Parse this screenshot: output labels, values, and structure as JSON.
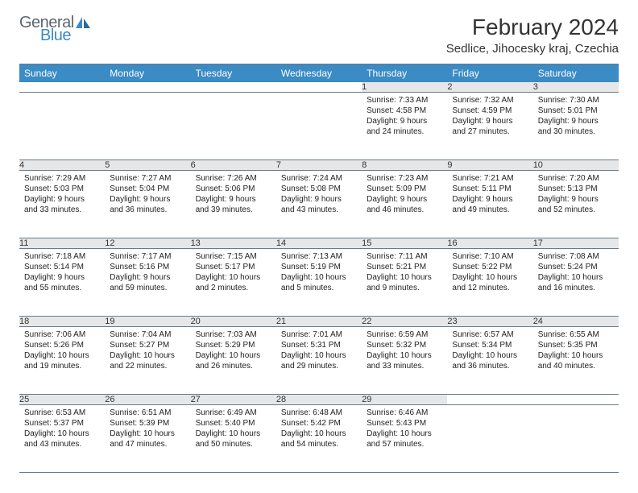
{
  "logo": {
    "general": "General",
    "blue": "Blue"
  },
  "title": "February 2024",
  "location": "Sedlice, Jihocesky kraj, Czechia",
  "colors": {
    "header_bg": "#3b8bc4",
    "header_fg": "#ffffff",
    "daynum_bg": "#e6e7e8",
    "rule": "#6a7a88",
    "logo_gray": "#5a6670",
    "logo_blue": "#3b8bc4"
  },
  "layout": {
    "type": "table",
    "columns": 7,
    "font_family": "Arial",
    "cell_font_size": 10,
    "header_font_size": 12,
    "title_font_size": 28
  },
  "days_of_week": [
    "Sunday",
    "Monday",
    "Tuesday",
    "Wednesday",
    "Thursday",
    "Friday",
    "Saturday"
  ],
  "weeks": [
    [
      null,
      null,
      null,
      null,
      {
        "n": "1",
        "sr": "Sunrise: 7:33 AM",
        "ss": "Sunset: 4:58 PM",
        "d1": "Daylight: 9 hours",
        "d2": "and 24 minutes."
      },
      {
        "n": "2",
        "sr": "Sunrise: 7:32 AM",
        "ss": "Sunset: 4:59 PM",
        "d1": "Daylight: 9 hours",
        "d2": "and 27 minutes."
      },
      {
        "n": "3",
        "sr": "Sunrise: 7:30 AM",
        "ss": "Sunset: 5:01 PM",
        "d1": "Daylight: 9 hours",
        "d2": "and 30 minutes."
      }
    ],
    [
      {
        "n": "4",
        "sr": "Sunrise: 7:29 AM",
        "ss": "Sunset: 5:03 PM",
        "d1": "Daylight: 9 hours",
        "d2": "and 33 minutes."
      },
      {
        "n": "5",
        "sr": "Sunrise: 7:27 AM",
        "ss": "Sunset: 5:04 PM",
        "d1": "Daylight: 9 hours",
        "d2": "and 36 minutes."
      },
      {
        "n": "6",
        "sr": "Sunrise: 7:26 AM",
        "ss": "Sunset: 5:06 PM",
        "d1": "Daylight: 9 hours",
        "d2": "and 39 minutes."
      },
      {
        "n": "7",
        "sr": "Sunrise: 7:24 AM",
        "ss": "Sunset: 5:08 PM",
        "d1": "Daylight: 9 hours",
        "d2": "and 43 minutes."
      },
      {
        "n": "8",
        "sr": "Sunrise: 7:23 AM",
        "ss": "Sunset: 5:09 PM",
        "d1": "Daylight: 9 hours",
        "d2": "and 46 minutes."
      },
      {
        "n": "9",
        "sr": "Sunrise: 7:21 AM",
        "ss": "Sunset: 5:11 PM",
        "d1": "Daylight: 9 hours",
        "d2": "and 49 minutes."
      },
      {
        "n": "10",
        "sr": "Sunrise: 7:20 AM",
        "ss": "Sunset: 5:13 PM",
        "d1": "Daylight: 9 hours",
        "d2": "and 52 minutes."
      }
    ],
    [
      {
        "n": "11",
        "sr": "Sunrise: 7:18 AM",
        "ss": "Sunset: 5:14 PM",
        "d1": "Daylight: 9 hours",
        "d2": "and 55 minutes."
      },
      {
        "n": "12",
        "sr": "Sunrise: 7:17 AM",
        "ss": "Sunset: 5:16 PM",
        "d1": "Daylight: 9 hours",
        "d2": "and 59 minutes."
      },
      {
        "n": "13",
        "sr": "Sunrise: 7:15 AM",
        "ss": "Sunset: 5:17 PM",
        "d1": "Daylight: 10 hours",
        "d2": "and 2 minutes."
      },
      {
        "n": "14",
        "sr": "Sunrise: 7:13 AM",
        "ss": "Sunset: 5:19 PM",
        "d1": "Daylight: 10 hours",
        "d2": "and 5 minutes."
      },
      {
        "n": "15",
        "sr": "Sunrise: 7:11 AM",
        "ss": "Sunset: 5:21 PM",
        "d1": "Daylight: 10 hours",
        "d2": "and 9 minutes."
      },
      {
        "n": "16",
        "sr": "Sunrise: 7:10 AM",
        "ss": "Sunset: 5:22 PM",
        "d1": "Daylight: 10 hours",
        "d2": "and 12 minutes."
      },
      {
        "n": "17",
        "sr": "Sunrise: 7:08 AM",
        "ss": "Sunset: 5:24 PM",
        "d1": "Daylight: 10 hours",
        "d2": "and 16 minutes."
      }
    ],
    [
      {
        "n": "18",
        "sr": "Sunrise: 7:06 AM",
        "ss": "Sunset: 5:26 PM",
        "d1": "Daylight: 10 hours",
        "d2": "and 19 minutes."
      },
      {
        "n": "19",
        "sr": "Sunrise: 7:04 AM",
        "ss": "Sunset: 5:27 PM",
        "d1": "Daylight: 10 hours",
        "d2": "and 22 minutes."
      },
      {
        "n": "20",
        "sr": "Sunrise: 7:03 AM",
        "ss": "Sunset: 5:29 PM",
        "d1": "Daylight: 10 hours",
        "d2": "and 26 minutes."
      },
      {
        "n": "21",
        "sr": "Sunrise: 7:01 AM",
        "ss": "Sunset: 5:31 PM",
        "d1": "Daylight: 10 hours",
        "d2": "and 29 minutes."
      },
      {
        "n": "22",
        "sr": "Sunrise: 6:59 AM",
        "ss": "Sunset: 5:32 PM",
        "d1": "Daylight: 10 hours",
        "d2": "and 33 minutes."
      },
      {
        "n": "23",
        "sr": "Sunrise: 6:57 AM",
        "ss": "Sunset: 5:34 PM",
        "d1": "Daylight: 10 hours",
        "d2": "and 36 minutes."
      },
      {
        "n": "24",
        "sr": "Sunrise: 6:55 AM",
        "ss": "Sunset: 5:35 PM",
        "d1": "Daylight: 10 hours",
        "d2": "and 40 minutes."
      }
    ],
    [
      {
        "n": "25",
        "sr": "Sunrise: 6:53 AM",
        "ss": "Sunset: 5:37 PM",
        "d1": "Daylight: 10 hours",
        "d2": "and 43 minutes."
      },
      {
        "n": "26",
        "sr": "Sunrise: 6:51 AM",
        "ss": "Sunset: 5:39 PM",
        "d1": "Daylight: 10 hours",
        "d2": "and 47 minutes."
      },
      {
        "n": "27",
        "sr": "Sunrise: 6:49 AM",
        "ss": "Sunset: 5:40 PM",
        "d1": "Daylight: 10 hours",
        "d2": "and 50 minutes."
      },
      {
        "n": "28",
        "sr": "Sunrise: 6:48 AM",
        "ss": "Sunset: 5:42 PM",
        "d1": "Daylight: 10 hours",
        "d2": "and 54 minutes."
      },
      {
        "n": "29",
        "sr": "Sunrise: 6:46 AM",
        "ss": "Sunset: 5:43 PM",
        "d1": "Daylight: 10 hours",
        "d2": "and 57 minutes."
      },
      null,
      null
    ]
  ]
}
